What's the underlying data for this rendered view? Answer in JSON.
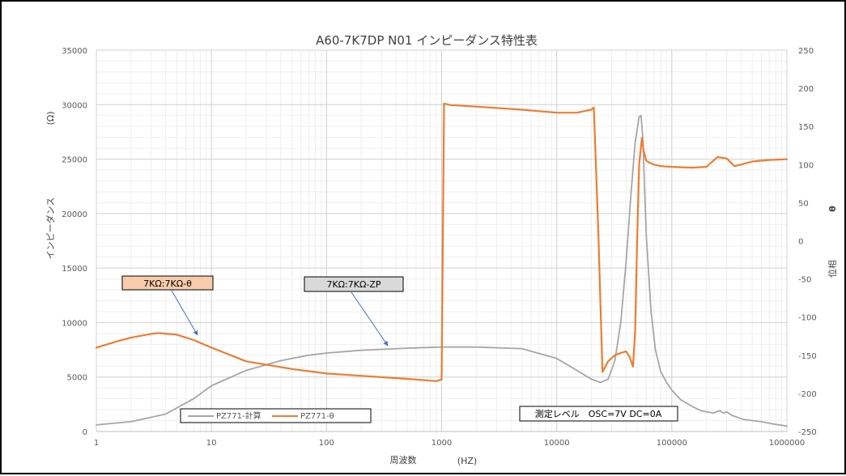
{
  "chart_data": {
    "type": "line",
    "title": "A60-7K7DP N01 インピーダンス特性表",
    "xlabel": "周波数",
    "xlabel_unit": "(HZ)",
    "ylabel_left": "インピーダンス",
    "ylabel_left_unit": "(Ω)",
    "ylabel_right": "位相",
    "ylabel_right_unit": "θ",
    "x_scale": "log",
    "xlim": [
      1,
      1000000
    ],
    "ylim_left": [
      0,
      35000
    ],
    "ylim_right": [
      -250,
      250
    ],
    "x_ticks": [
      "1",
      "10",
      "100",
      "1000",
      "10000",
      "100000",
      "1000000"
    ],
    "y_left_ticks": [
      "0",
      "5000",
      "10000",
      "15000",
      "20000",
      "25000",
      "30000",
      "35000"
    ],
    "y_right_ticks": [
      "-250",
      "-200",
      "-150",
      "-100",
      "-50",
      "0",
      "50",
      "100",
      "150",
      "200",
      "250"
    ],
    "grid": true,
    "legend_position": "bottom-left",
    "series": [
      {
        "name": "PZ771-計算",
        "axis": "left",
        "color": "#a6a6a6",
        "x": [
          1,
          2,
          4,
          7,
          10,
          20,
          40,
          70,
          100,
          200,
          500,
          1000,
          2000,
          5000,
          10000,
          15000,
          20000,
          24000,
          28000,
          32000,
          36000,
          40000,
          44000,
          48000,
          52000,
          54000,
          56000,
          60000,
          66000,
          72000,
          80000,
          90000,
          100000,
          120000,
          150000,
          180000,
          200000,
          230000,
          260000,
          280000,
          300000,
          330000,
          370000,
          420000,
          500000,
          600000,
          750000,
          1000000
        ],
        "y": [
          600,
          900,
          1600,
          3000,
          4200,
          5600,
          6500,
          7000,
          7200,
          7450,
          7650,
          7750,
          7750,
          7600,
          6700,
          5600,
          4800,
          4500,
          4800,
          6500,
          10000,
          15500,
          21500,
          26500,
          28900,
          29000,
          27000,
          18000,
          11000,
          7500,
          5500,
          4500,
          3800,
          2900,
          2300,
          1900,
          1800,
          1700,
          1900,
          1700,
          1800,
          1500,
          1300,
          1100,
          1000,
          900,
          700,
          500
        ]
      },
      {
        "name": "PZ771-θ",
        "axis": "right",
        "color": "#ed7d31",
        "x": [
          1,
          1.5,
          2,
          3,
          3.5,
          5,
          7,
          10,
          20,
          50,
          100,
          200,
          500,
          900,
          1000,
          1050,
          1200,
          2000,
          5000,
          10000,
          15000,
          20000,
          21000,
          23000,
          25000,
          28000,
          32000,
          36000,
          40000,
          43000,
          46000,
          48000,
          50000,
          52000,
          55000,
          57000,
          60000,
          65000,
          70000,
          80000,
          100000,
          150000,
          200000,
          250000,
          300000,
          350000,
          400000,
          500000,
          700000,
          1000000
        ],
        "y": [
          -140,
          -132,
          -127,
          -122,
          -121,
          -123,
          -130,
          -140,
          -158,
          -168,
          -174,
          -177,
          -181,
          -184,
          -182,
          180,
          178,
          176,
          172,
          168,
          168,
          172,
          175,
          10,
          -172,
          -158,
          -150,
          -147,
          -145,
          -152,
          -165,
          -120,
          0,
          100,
          135,
          118,
          105,
          102,
          100,
          98,
          97,
          96,
          97,
          110,
          108,
          98,
          100,
          104,
          106,
          107
        ]
      }
    ],
    "annotations": [
      {
        "text": "7KΩ:7KΩ-θ",
        "fill": "#f8cbad",
        "target_series": "PZ771-θ"
      },
      {
        "text": "7KΩ:7KΩ-ZP",
        "fill": "#d9d9d9",
        "target_series": "PZ771-計算"
      },
      {
        "text": "測定レベル　OSC=7V  DC=0A",
        "fill": "#ffffff"
      }
    ]
  }
}
